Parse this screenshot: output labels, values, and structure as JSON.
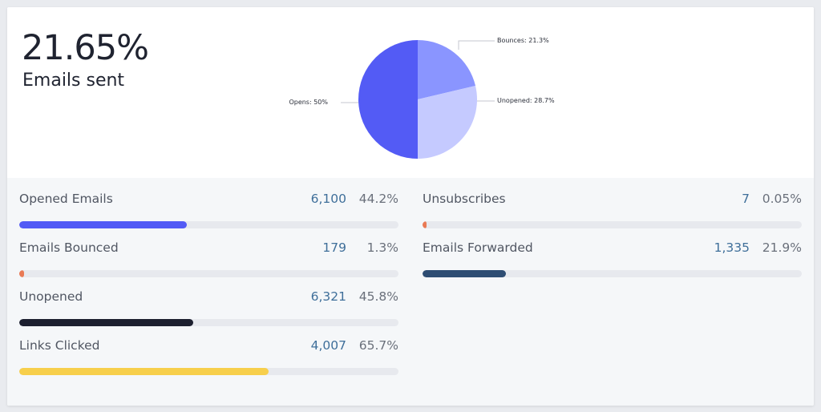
{
  "summary": {
    "value": "21.65%",
    "label": "Emails sent"
  },
  "chart_data": {
    "type": "pie",
    "slices": [
      {
        "label": "Bounces: 21.3%",
        "value": 21.3,
        "color": "#8a95ff"
      },
      {
        "label": "Unopened: 28.7%",
        "value": 28.7,
        "color": "#c5caff"
      },
      {
        "label": "Opens: 50%",
        "value": 50,
        "color": "#535bf5"
      }
    ]
  },
  "stats": [
    {
      "label": "Opened Emails",
      "count": "6,100",
      "percent": "44.2%",
      "fill": 0.442,
      "color": "#535bf5"
    },
    {
      "label": "Unsubscribes",
      "count": "7",
      "percent": "0.05%",
      "fill": 0.0005,
      "color": "#e97a55"
    },
    {
      "label": "Emails Bounced",
      "count": "179",
      "percent": "1.3%",
      "fill": 0.013,
      "color": "#e97a55"
    },
    {
      "label": "Emails Forwarded",
      "count": "1,335",
      "percent": "21.9%",
      "fill": 0.219,
      "color": "#2e4d73"
    },
    {
      "label": "Unopened",
      "count": "6,321",
      "percent": "45.8%",
      "fill": 0.458,
      "color": "#1d2030"
    },
    {
      "label": "Links Clicked",
      "count": "4,007",
      "percent": "65.7%",
      "fill": 0.657,
      "color": "#f7cf4c"
    }
  ]
}
